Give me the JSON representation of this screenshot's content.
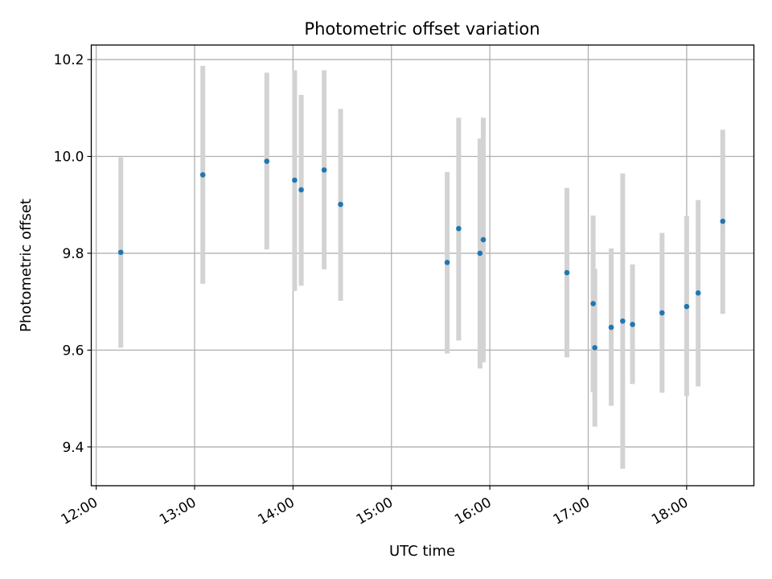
{
  "chart_data": {
    "type": "scatter",
    "title": "Photometric offset variation",
    "xlabel": "UTC time",
    "ylabel": "Photometric offset",
    "x_ticks": [
      "12:00",
      "13:00",
      "14:00",
      "15:00",
      "16:00",
      "17:00",
      "18:00"
    ],
    "y_ticks": [
      "9.4",
      "9.6",
      "9.8",
      "10.0",
      "10.2"
    ],
    "xlim": [
      "11:57",
      "18:41"
    ],
    "ylim": [
      9.32,
      10.23
    ],
    "grid": true,
    "colors": {
      "point": "#1f77b4",
      "error_bar": "#d3d3d3"
    },
    "points": [
      {
        "x": "12:15",
        "y": 9.802,
        "y_low": 9.605,
        "y_high": 9.998
      },
      {
        "x": "13:05",
        "y": 9.962,
        "y_low": 9.737,
        "y_high": 10.187
      },
      {
        "x": "13:44",
        "y": 9.99,
        "y_low": 9.808,
        "y_high": 10.173
      },
      {
        "x": "14:01",
        "y": 9.951,
        "y_low": 9.722,
        "y_high": 10.178
      },
      {
        "x": "14:05",
        "y": 9.931,
        "y_low": 9.733,
        "y_high": 10.127
      },
      {
        "x": "14:19",
        "y": 9.972,
        "y_low": 9.767,
        "y_high": 10.178
      },
      {
        "x": "14:29",
        "y": 9.901,
        "y_low": 9.702,
        "y_high": 10.098
      },
      {
        "x": "15:34",
        "y": 9.781,
        "y_low": 9.593,
        "y_high": 9.968
      },
      {
        "x": "15:41",
        "y": 9.851,
        "y_low": 9.62,
        "y_high": 10.08
      },
      {
        "x": "15:54",
        "y": 9.8,
        "y_low": 9.562,
        "y_high": 10.037
      },
      {
        "x": "15:56",
        "y": 9.828,
        "y_low": 9.575,
        "y_high": 10.08
      },
      {
        "x": "16:47",
        "y": 9.76,
        "y_low": 9.585,
        "y_high": 9.935
      },
      {
        "x": "17:03",
        "y": 9.696,
        "y_low": 9.513,
        "y_high": 9.878
      },
      {
        "x": "17:04",
        "y": 9.605,
        "y_low": 9.442,
        "y_high": 9.768
      },
      {
        "x": "17:14",
        "y": 9.647,
        "y_low": 9.485,
        "y_high": 9.81
      },
      {
        "x": "17:21",
        "y": 9.66,
        "y_low": 9.355,
        "y_high": 9.965
      },
      {
        "x": "17:27",
        "y": 9.653,
        "y_low": 9.53,
        "y_high": 9.777
      },
      {
        "x": "17:45",
        "y": 9.677,
        "y_low": 9.512,
        "y_high": 9.842
      },
      {
        "x": "18:00",
        "y": 9.69,
        "y_low": 9.505,
        "y_high": 9.877
      },
      {
        "x": "18:07",
        "y": 9.718,
        "y_low": 9.525,
        "y_high": 9.91
      },
      {
        "x": "18:22",
        "y": 9.866,
        "y_low": 9.675,
        "y_high": 10.055
      }
    ]
  }
}
